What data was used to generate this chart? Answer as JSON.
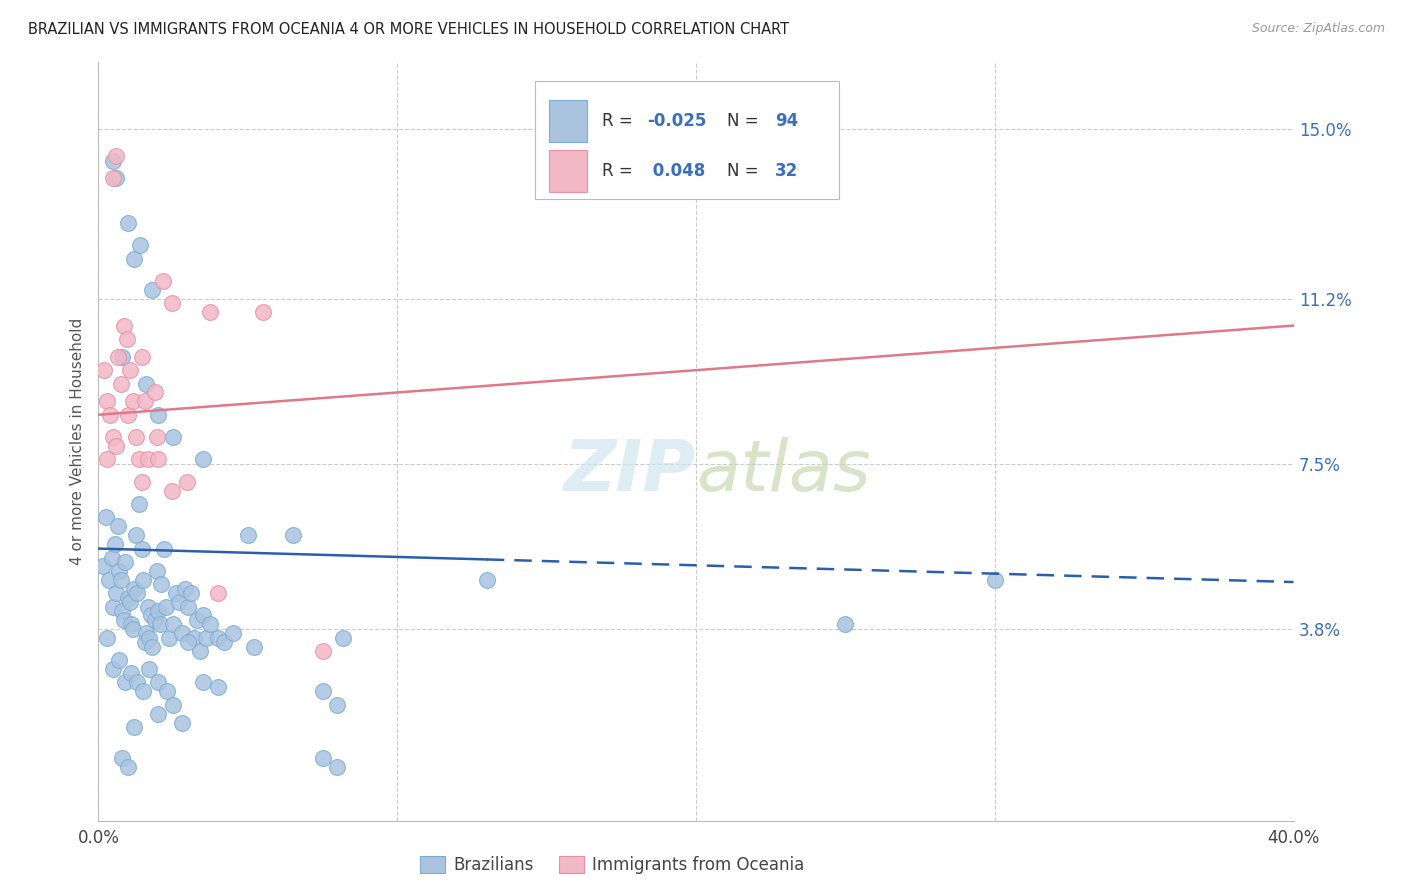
{
  "title": "BRAZILIAN VS IMMIGRANTS FROM OCEANIA 4 OR MORE VEHICLES IN HOUSEHOLD CORRELATION CHART",
  "source": "Source: ZipAtlas.com",
  "ylabel": "4 or more Vehicles in Household",
  "ytick_labels": [
    "15.0%",
    "11.2%",
    "7.5%",
    "3.8%"
  ],
  "ytick_values": [
    15.0,
    11.2,
    7.5,
    3.8
  ],
  "xmin": 0.0,
  "xmax": 40.0,
  "ymin": -0.5,
  "ymax": 16.5,
  "legend_blue_r": "-0.025",
  "legend_blue_n": "94",
  "legend_pink_r": "0.048",
  "legend_pink_n": "32",
  "legend_label_blue": "Brazilians",
  "legend_label_pink": "Immigrants from Oceania",
  "blue_color": "#aac4e0",
  "blue_edge_color": "#7aadd4",
  "blue_line_color": "#2b5fad",
  "pink_color": "#f2b8c6",
  "pink_edge_color": "#e890a8",
  "pink_line_color": "#e07888",
  "legend_text_dark": "#333333",
  "legend_value_color": "#3a6fbd",
  "watermark_color": "#d0e4f0",
  "blue_points": [
    [
      0.15,
      5.2
    ],
    [
      0.25,
      6.3
    ],
    [
      0.35,
      4.9
    ],
    [
      0.45,
      5.4
    ],
    [
      0.5,
      4.3
    ],
    [
      0.55,
      5.7
    ],
    [
      0.6,
      4.6
    ],
    [
      0.65,
      6.1
    ],
    [
      0.7,
      5.1
    ],
    [
      0.75,
      4.9
    ],
    [
      0.8,
      4.2
    ],
    [
      0.85,
      4.0
    ],
    [
      0.9,
      5.3
    ],
    [
      1.0,
      4.5
    ],
    [
      1.05,
      4.4
    ],
    [
      1.1,
      3.9
    ],
    [
      1.15,
      3.8
    ],
    [
      1.2,
      4.7
    ],
    [
      1.25,
      5.9
    ],
    [
      1.3,
      4.6
    ],
    [
      1.35,
      6.6
    ],
    [
      1.45,
      5.6
    ],
    [
      1.5,
      4.9
    ],
    [
      1.55,
      3.5
    ],
    [
      1.6,
      3.7
    ],
    [
      1.65,
      4.3
    ],
    [
      1.7,
      3.6
    ],
    [
      1.75,
      4.1
    ],
    [
      1.8,
      3.4
    ],
    [
      1.9,
      4.0
    ],
    [
      1.95,
      5.1
    ],
    [
      2.0,
      4.2
    ],
    [
      2.05,
      3.9
    ],
    [
      2.1,
      4.8
    ],
    [
      2.2,
      5.6
    ],
    [
      2.25,
      4.3
    ],
    [
      2.35,
      3.6
    ],
    [
      2.5,
      3.9
    ],
    [
      2.6,
      4.6
    ],
    [
      2.7,
      4.4
    ],
    [
      2.8,
      3.7
    ],
    [
      2.9,
      4.7
    ],
    [
      3.0,
      4.3
    ],
    [
      3.1,
      4.6
    ],
    [
      3.2,
      3.6
    ],
    [
      3.3,
      4.0
    ],
    [
      3.4,
      3.3
    ],
    [
      3.5,
      4.1
    ],
    [
      3.6,
      3.6
    ],
    [
      3.75,
      3.9
    ],
    [
      4.0,
      3.6
    ],
    [
      4.2,
      3.5
    ],
    [
      4.5,
      3.7
    ],
    [
      5.0,
      5.9
    ],
    [
      5.2,
      3.4
    ],
    [
      0.5,
      14.3
    ],
    [
      0.6,
      13.9
    ],
    [
      1.0,
      12.9
    ],
    [
      1.2,
      12.1
    ],
    [
      1.4,
      12.4
    ],
    [
      1.8,
      11.4
    ],
    [
      2.0,
      8.6
    ],
    [
      2.5,
      8.1
    ],
    [
      0.8,
      9.9
    ],
    [
      1.6,
      9.3
    ],
    [
      3.5,
      7.6
    ],
    [
      6.5,
      5.9
    ],
    [
      13.0,
      4.9
    ],
    [
      30.0,
      4.9
    ],
    [
      0.3,
      3.6
    ],
    [
      0.5,
      2.9
    ],
    [
      0.7,
      3.1
    ],
    [
      0.9,
      2.6
    ],
    [
      1.1,
      2.8
    ],
    [
      1.3,
      2.6
    ],
    [
      1.5,
      2.4
    ],
    [
      1.7,
      2.9
    ],
    [
      2.0,
      2.6
    ],
    [
      2.3,
      2.4
    ],
    [
      2.5,
      2.1
    ],
    [
      3.0,
      3.5
    ],
    [
      3.5,
      2.6
    ],
    [
      4.0,
      2.5
    ],
    [
      1.2,
      1.6
    ],
    [
      2.0,
      1.9
    ],
    [
      2.8,
      1.7
    ],
    [
      7.5,
      2.4
    ],
    [
      8.0,
      2.1
    ],
    [
      0.8,
      0.9
    ],
    [
      1.0,
      0.7
    ],
    [
      7.5,
      0.9
    ],
    [
      8.0,
      0.7
    ],
    [
      8.2,
      3.6
    ],
    [
      25.0,
      3.9
    ]
  ],
  "pink_points": [
    [
      0.2,
      9.6
    ],
    [
      0.3,
      8.9
    ],
    [
      0.4,
      8.6
    ],
    [
      0.5,
      8.1
    ],
    [
      0.6,
      7.9
    ],
    [
      0.65,
      9.9
    ],
    [
      0.75,
      9.3
    ],
    [
      0.85,
      10.6
    ],
    [
      0.95,
      10.3
    ],
    [
      1.0,
      8.6
    ],
    [
      1.05,
      9.6
    ],
    [
      1.15,
      8.9
    ],
    [
      1.25,
      8.1
    ],
    [
      1.35,
      7.6
    ],
    [
      1.45,
      9.9
    ],
    [
      1.55,
      8.9
    ],
    [
      1.65,
      7.6
    ],
    [
      1.9,
      9.1
    ],
    [
      2.0,
      7.6
    ],
    [
      2.15,
      11.6
    ],
    [
      2.45,
      11.1
    ],
    [
      0.5,
      13.9
    ],
    [
      0.6,
      14.4
    ],
    [
      3.75,
      10.9
    ],
    [
      0.3,
      7.6
    ],
    [
      1.45,
      7.1
    ],
    [
      1.95,
      8.1
    ],
    [
      2.45,
      6.9
    ],
    [
      2.95,
      7.1
    ],
    [
      5.5,
      10.9
    ],
    [
      7.5,
      3.3
    ],
    [
      4.0,
      4.6
    ]
  ],
  "blue_solid_end_x": 13.0,
  "blue_trend_x0": 0.0,
  "blue_trend_y0": 5.6,
  "blue_trend_x1": 40.0,
  "blue_trend_y1": 4.85,
  "pink_trend_x0": 0.0,
  "pink_trend_y0": 8.6,
  "pink_trend_x1": 40.0,
  "pink_trend_y1": 10.6
}
